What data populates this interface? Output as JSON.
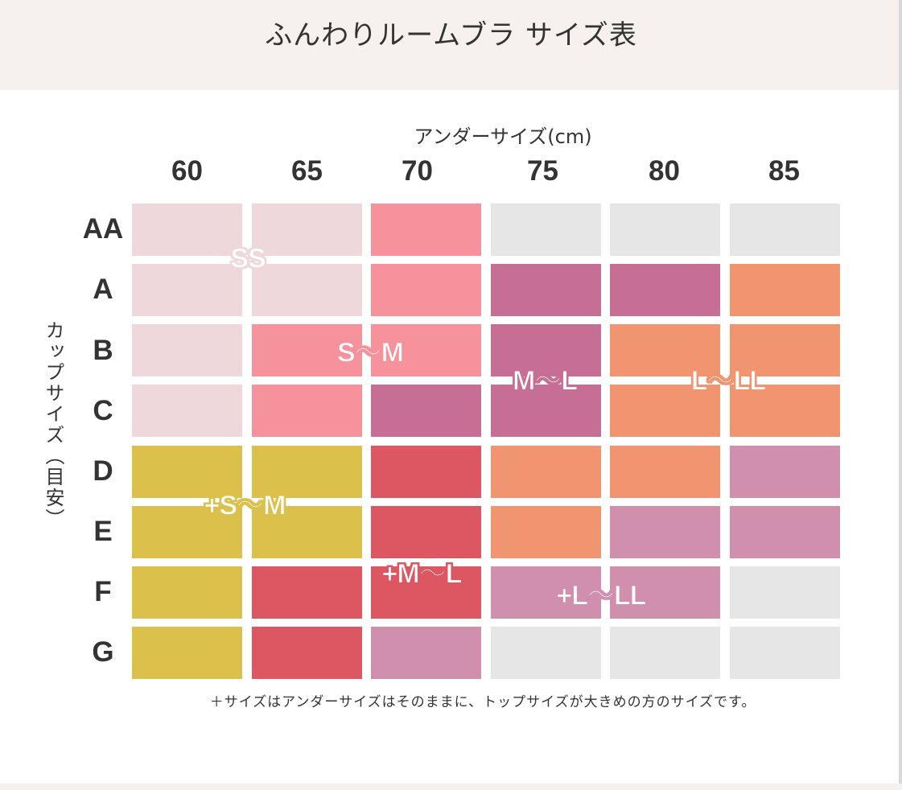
{
  "header": {
    "title": "ふんわりルームブラ サイズ表"
  },
  "table": {
    "x_axis_label": "アンダーサイズ(cm)",
    "y_axis_label": "カップサイズ（目安）",
    "under_sizes": [
      "60",
      "65",
      "70",
      "75",
      "80",
      "85"
    ],
    "cup_sizes": [
      "AA",
      "A",
      "B",
      "C",
      "D",
      "E",
      "F",
      "G"
    ],
    "colors": {
      "SS": "#eed8dc",
      "S-M": "#f6929b",
      "M-L": "#c66e93",
      "L-LL": "#f0956f",
      "+S-M": "#dcc04c",
      "+M-L": "#dd5762",
      "+L-LL": "#d18fae",
      "none": "#e6e6e6"
    },
    "grid": [
      [
        "SS",
        "SS",
        "S-M",
        "none",
        "none",
        "none"
      ],
      [
        "SS",
        "SS",
        "S-M",
        "M-L",
        "M-L",
        "L-LL"
      ],
      [
        "SS",
        "S-M",
        "S-M",
        "M-L",
        "L-LL",
        "L-LL"
      ],
      [
        "SS",
        "S-M",
        "M-L",
        "M-L",
        "L-LL",
        "L-LL"
      ],
      [
        "+S-M",
        "+S-M",
        "+M-L",
        "L-LL",
        "L-LL",
        "+L-LL"
      ],
      [
        "+S-M",
        "+S-M",
        "+M-L",
        "L-LL",
        "+L-LL",
        "+L-LL"
      ],
      [
        "+S-M",
        "+M-L",
        "+M-L",
        "+L-LL",
        "+L-LL",
        "none"
      ],
      [
        "+S-M",
        "+M-L",
        "+L-LL",
        "none",
        "none",
        "none"
      ]
    ],
    "zone_labels": {
      "ss": "SS",
      "s_m": "S～M",
      "m_l": "M～L",
      "l_ll": "L～LL",
      "plus_s_m": "+S～M",
      "plus_m_l": "+M～L",
      "plus_l_ll": "+L～LL"
    }
  },
  "footnote": "＋サイズはアンダーサイズはそのままに、トップサイズが大きめの方のサイズです。"
}
